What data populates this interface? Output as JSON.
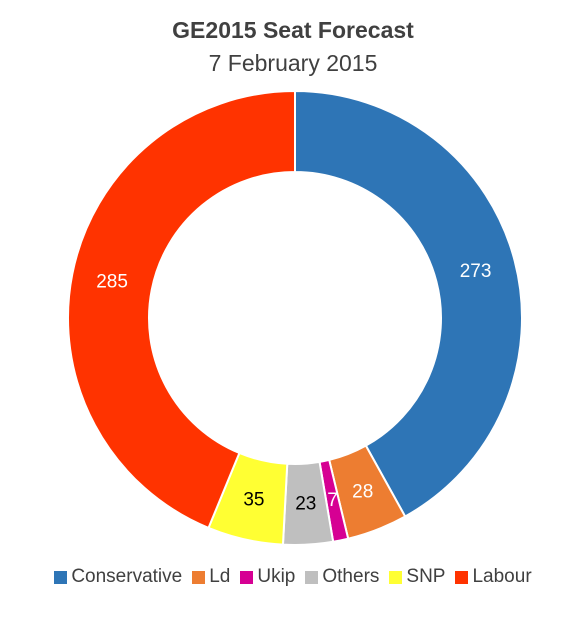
{
  "chart_data": {
    "type": "pie",
    "variant": "donut",
    "title": "GE2015 Seat Forecast",
    "subtitle": "7 February 2015",
    "legend_position": "bottom",
    "series": [
      {
        "name": "Conservative",
        "value": 273,
        "color": "#2E75B6",
        "label_color": "#ffffff"
      },
      {
        "name": "Ld",
        "value": 28,
        "color": "#ED7D31",
        "label_color": "#ffffff"
      },
      {
        "name": "Ukip",
        "value": 7,
        "color": "#D60093",
        "label_color": "#ffffff"
      },
      {
        "name": "Others",
        "value": 23,
        "color": "#BFBFBF",
        "label_color": "#000000"
      },
      {
        "name": "SNP",
        "value": 35,
        "color": "#FFFF33",
        "label_color": "#000000"
      },
      {
        "name": "Labour",
        "value": 285,
        "color": "#FF3300",
        "label_color": "#ffffff"
      }
    ]
  }
}
